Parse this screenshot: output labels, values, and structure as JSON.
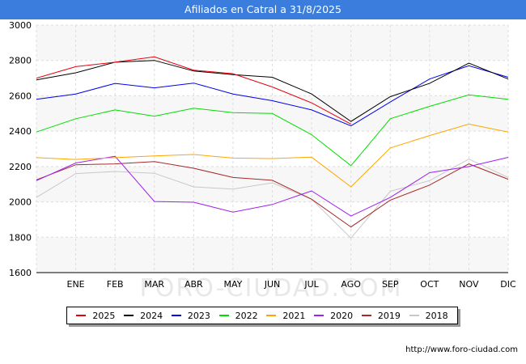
{
  "header": {
    "title": "Afiliados en Catral a 31/8/2025"
  },
  "footer": {
    "url": "http://www.foro-ciudad.com"
  },
  "watermark": "FORO-CIUDAD.COM",
  "chart_data": {
    "type": "line",
    "title": "Afiliados en Catral a 31/8/2025",
    "categories": [
      "",
      "ENE",
      "FEB",
      "MAR",
      "ABR",
      "MAY",
      "JUN",
      "JUL",
      "AGO",
      "SEP",
      "OCT",
      "NOV",
      "DIC"
    ],
    "ylim": [
      1600,
      3000
    ],
    "yticks": [
      1600,
      1800,
      2000,
      2200,
      2400,
      2600,
      2800,
      3000
    ],
    "grid": true,
    "legend_position": "bottom",
    "series": [
      {
        "name": "2025",
        "color": "#e8000b",
        "values": [
          2700,
          2765,
          2790,
          2820,
          2745,
          2725,
          2650,
          2560,
          2440,
          null,
          null,
          null,
          null
        ]
      },
      {
        "name": "2024",
        "color": "#000000",
        "values": [
          2690,
          2730,
          2790,
          2800,
          2740,
          2720,
          2705,
          2610,
          2455,
          2595,
          2670,
          2785,
          2695
        ]
      },
      {
        "name": "2023",
        "color": "#0000ee",
        "values": [
          2580,
          2610,
          2670,
          2645,
          2672,
          2610,
          2572,
          2520,
          2430,
          2565,
          2695,
          2770,
          2705
        ]
      },
      {
        "name": "2022",
        "color": "#00dd00",
        "values": [
          2395,
          2470,
          2520,
          2485,
          2530,
          2505,
          2500,
          2380,
          2205,
          2470,
          2540,
          2605,
          2580
        ]
      },
      {
        "name": "2021",
        "color": "#ffa500",
        "values": [
          2250,
          2240,
          2250,
          2260,
          2268,
          2248,
          2245,
          2253,
          2085,
          2305,
          2375,
          2440,
          2395
        ]
      },
      {
        "name": "2020",
        "color": "#a020f0",
        "values": [
          2120,
          2220,
          2258,
          2002,
          1998,
          1942,
          1985,
          2062,
          1920,
          2025,
          2165,
          2200,
          2252
        ]
      },
      {
        "name": "2019",
        "color": "#a52a2a",
        "values": [
          2125,
          2210,
          2215,
          2228,
          2190,
          2138,
          2122,
          2015,
          1858,
          2010,
          2095,
          2215,
          2128
        ]
      },
      {
        "name": "2018",
        "color": "#c8c8c8",
        "values": [
          2025,
          2160,
          2172,
          2162,
          2085,
          2072,
          2108,
          2015,
          1795,
          2060,
          2120,
          2242,
          2138
        ]
      }
    ]
  }
}
